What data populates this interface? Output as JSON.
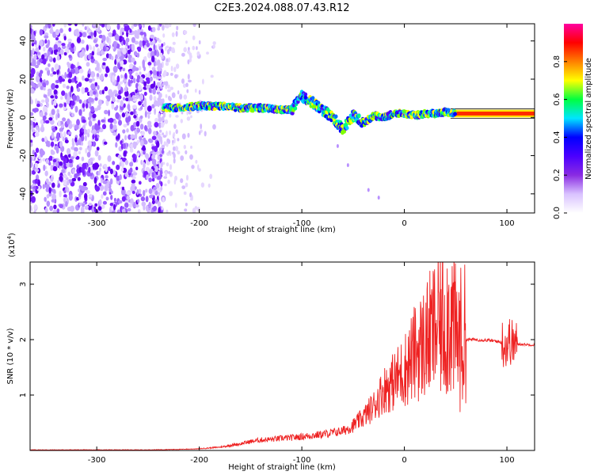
{
  "title": "C2E3.2024.088.07.43.R12",
  "chart_data": [
    {
      "type": "heatmap",
      "xlabel": "Height of straight line (km)",
      "ylabel": "Frequency (Hz)",
      "xlim": [
        -365,
        127
      ],
      "ylim": [
        -50,
        49
      ],
      "xticks": [
        -300,
        -200,
        -100,
        0,
        100
      ],
      "yticks": [
        -40,
        -20,
        0,
        20,
        40
      ],
      "xtick_labels": [
        "-300",
        "-200",
        "-100",
        "0",
        "100"
      ],
      "ytick_labels": [
        "-40",
        "-20",
        "0",
        "20",
        "40"
      ],
      "colorbar": {
        "label": "Normalized spectral amplitude",
        "range": [
          0,
          1
        ],
        "ticks": [
          0.0,
          0.2,
          0.4,
          0.6,
          0.8
        ],
        "tick_labels": [
          "0.0",
          "0.2",
          "0.4",
          "0.6",
          "0.8"
        ],
        "colors": [
          "#ffffff",
          "#d9c2ff",
          "#8a2be2",
          "#4b00ff",
          "#0000ff",
          "#00e5ff",
          "#00ff40",
          "#ffff00",
          "#ff8000",
          "#ff0000",
          "#ff00a0"
        ]
      },
      "signal_track": {
        "x": [
          -235,
          -220,
          -200,
          -180,
          -160,
          -140,
          -120,
          -110,
          -100,
          -90,
          -80,
          -70,
          -60,
          -50,
          -40,
          -30,
          -20,
          -10,
          0,
          10,
          20,
          30,
          40,
          50,
          60,
          80,
          100,
          127
        ],
        "y": [
          5,
          5,
          6,
          6,
          5,
          5,
          4,
          4,
          11,
          8,
          4,
          0,
          -6,
          1,
          -3,
          1,
          0,
          2,
          2,
          1,
          2,
          2,
          3,
          2,
          2,
          2,
          2,
          2
        ]
      },
      "grid": false
    },
    {
      "type": "line",
      "xlabel": "Height of straight line (km)",
      "ylabel": "SNR (10 * v/v)",
      "y_multiplier": "(x10^4)",
      "multiplier_base": "(x10",
      "multiplier_exp": "4",
      "multiplier_close": ")",
      "xlim": [
        -365,
        127
      ],
      "ylim": [
        0,
        3.4
      ],
      "xticks": [
        -300,
        -200,
        -100,
        0,
        100
      ],
      "yticks": [
        1,
        2,
        3
      ],
      "xtick_labels": [
        "-300",
        "-200",
        "-100",
        "0",
        "100"
      ],
      "ytick_labels": [
        "1",
        "2",
        "3"
      ],
      "color": "#ee2222",
      "series": [
        {
          "x": [
            -365,
            -300,
            -250,
            -220,
            -200,
            -180,
            -160,
            -150,
            -140,
            -130,
            -120,
            -110,
            -100,
            -90,
            -80,
            -70,
            -60,
            -50,
            -40,
            -30,
            -20,
            -10,
            0,
            10,
            20,
            30,
            40,
            45,
            48,
            50,
            55,
            60,
            70,
            80,
            90,
            95,
            100,
            103,
            105,
            110,
            120,
            127
          ],
          "y": [
            0.01,
            0.01,
            0.01,
            0.02,
            0.03,
            0.06,
            0.12,
            0.16,
            0.19,
            0.2,
            0.22,
            0.23,
            0.25,
            0.27,
            0.29,
            0.32,
            0.35,
            0.45,
            0.6,
            0.8,
            1.1,
            1.25,
            1.45,
            1.75,
            1.95,
            2.2,
            2.35,
            2.5,
            2.2,
            2.05,
            2.0,
            2.0,
            2.0,
            1.99,
            1.97,
            1.95,
            1.9,
            2.0,
            1.93,
            1.92,
            1.91,
            1.9
          ]
        }
      ],
      "grid": false
    }
  ]
}
